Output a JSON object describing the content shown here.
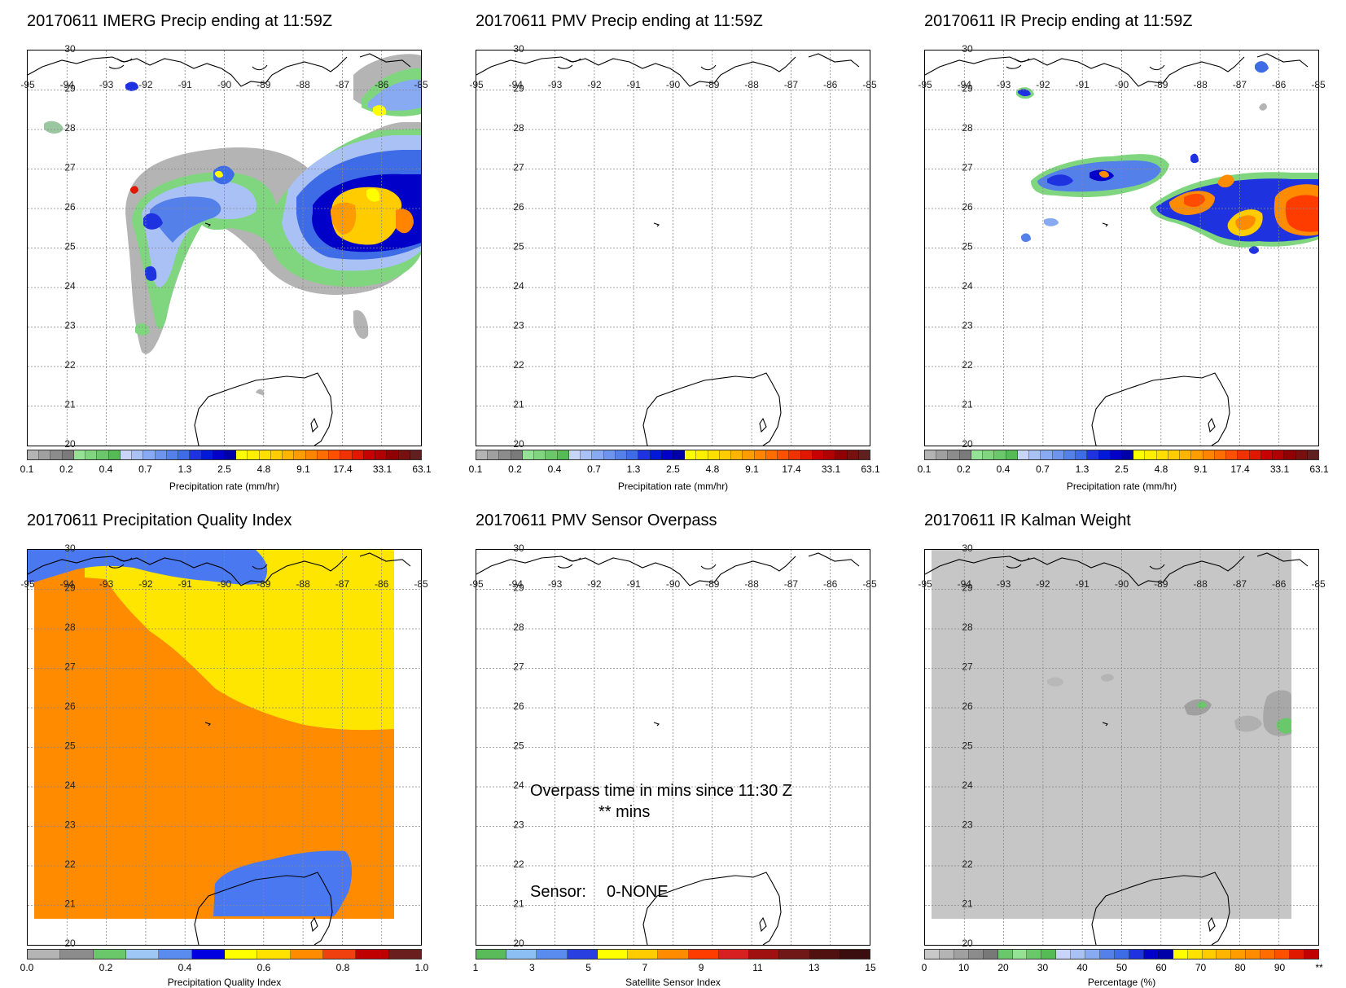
{
  "panels": {
    "imerg": {
      "title": "20170611 IMERG Precip ending at 11:59Z",
      "colorbar_label": "Precipitation rate (mm/hr)",
      "colorbar_ticks": [
        "0.1",
        "0.2",
        "0.4",
        "0.7",
        "1.3",
        "2.5",
        "4.8",
        "9.1",
        "17.4",
        "33.1",
        "63.1"
      ]
    },
    "pmv": {
      "title": "20170611 PMV Precip ending at 11:59Z",
      "colorbar_label": "Precipitation rate (mm/hr)",
      "colorbar_ticks": [
        "0.1",
        "0.2",
        "0.4",
        "0.7",
        "1.3",
        "2.5",
        "4.8",
        "9.1",
        "17.4",
        "33.1",
        "63.1"
      ]
    },
    "ir": {
      "title": "20170611 IR Precip ending at 11:59Z",
      "colorbar_label": "Precipitation rate (mm/hr)",
      "colorbar_ticks": [
        "0.1",
        "0.2",
        "0.4",
        "0.7",
        "1.3",
        "2.5",
        "4.8",
        "9.1",
        "17.4",
        "33.1",
        "63.1"
      ]
    },
    "quality": {
      "title": "20170611 Precipitation Quality Index",
      "colorbar_label": "Precipitation Quality Index",
      "colorbar_ticks": [
        "0.0",
        "0.2",
        "0.4",
        "0.6",
        "0.8",
        "1.0"
      ]
    },
    "overpass": {
      "title": "20170611 PMV Sensor Overpass",
      "colorbar_label": "Satellite Sensor Index",
      "colorbar_ticks": [
        "1",
        "3",
        "5",
        "7",
        "9",
        "11",
        "13",
        "15"
      ],
      "note_line1": "Overpass time in mins since 11:30 Z",
      "note_line2": "** mins",
      "sensor_label": "Sensor:",
      "sensor_value": "0-NONE"
    },
    "kalman": {
      "title": "20170611 IR Kalman Weight",
      "colorbar_label": "Percentage (%)",
      "colorbar_ticks": [
        "0",
        "10",
        "20",
        "30",
        "40",
        "50",
        "60",
        "70",
        "80",
        "90",
        "**"
      ]
    }
  },
  "map": {
    "lon_labels": [
      "-95",
      "-94",
      "-93",
      "-92",
      "-91",
      "-90",
      "-89",
      "-88",
      "-87",
      "-86",
      "-85"
    ],
    "lat_labels": [
      "30",
      "29",
      "28",
      "27",
      "26",
      "25",
      "24",
      "23",
      "22",
      "21",
      "20"
    ]
  },
  "colors": {
    "precip_scale": [
      "#b4b4b4",
      "#a0a0a0",
      "#8c8c8c",
      "#7a7a7a",
      "#94e394",
      "#7fd67f",
      "#6ac86a",
      "#55bb55",
      "#c8d4f8",
      "#a9c1f5",
      "#88aaf2",
      "#6d95ee",
      "#5480ea",
      "#3e6be6",
      "#1e32e0",
      "#0018d8",
      "#0000c8",
      "#0000a8",
      "#ffff00",
      "#ffee00",
      "#ffde00",
      "#ffcc00",
      "#ffb400",
      "#ff9c00",
      "#ff8400",
      "#ff6c00",
      "#ff5000",
      "#f03200",
      "#e01800",
      "#c80000",
      "#b00000",
      "#900000",
      "#781010",
      "#602020"
    ],
    "quality_scale": [
      "#b4b4b4",
      "#8c8c8c",
      "#6ac86a",
      "#9ec7f5",
      "#5a8cf0",
      "#0000e0",
      "#ffff00",
      "#ffe200",
      "#ff8c00",
      "#f04010",
      "#c00000",
      "#6a1e1e"
    ],
    "sensor_scale": [
      "#5abb5a",
      "#8cc0f5",
      "#5a8cf0",
      "#2a3fe0",
      "#ffff00",
      "#ffcc00",
      "#ff8c00",
      "#ff3c00",
      "#d82020",
      "#a01010",
      "#701818",
      "#501010",
      "#3a0e0e"
    ],
    "kalman_scale": [
      "#c8c8c8",
      "#b4b4b4",
      "#a0a0a0",
      "#8c8c8c",
      "#787878",
      "#6ac86a",
      "#94e394",
      "#6ac86a",
      "#55bb55",
      "#c8d4f8",
      "#a9c1f5",
      "#88aaf2",
      "#5480ea",
      "#3e6be6",
      "#1e32e0",
      "#0000c8",
      "#0000a8",
      "#ffff00",
      "#ffe200",
      "#ffcc00",
      "#ffb400",
      "#ff9c00",
      "#ff8c00",
      "#ff6c00",
      "#ff5000",
      "#e01800",
      "#c00000"
    ],
    "quality_orange": "#ff8c00",
    "quality_yellow": "#ffe600",
    "quality_blue": "#4a78f0",
    "kalman_gray": "#c6c6c6"
  }
}
